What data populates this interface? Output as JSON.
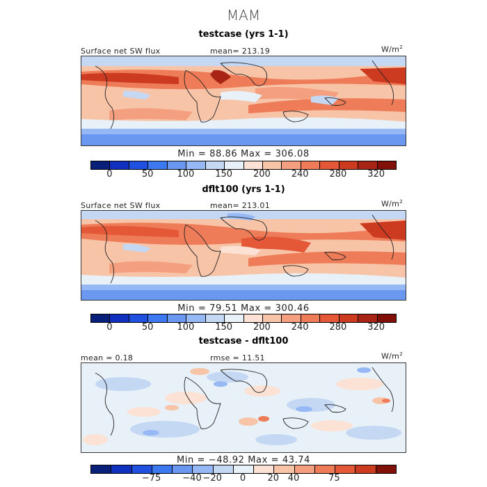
{
  "title": "MAM",
  "units": "W/m",
  "units_exp": "2",
  "panels": [
    {
      "title": "testcase (yrs 1-1)",
      "left_label": "Surface net SW flux",
      "center_label": "mean= 213.19",
      "min_max": "Min =  88.86  Max = 306.08",
      "ticks": [
        "0",
        "50",
        "100",
        "150",
        "200",
        "240",
        "280",
        "320"
      ]
    },
    {
      "title": "dflt100 (yrs 1-1)",
      "left_label": "Surface net SW flux",
      "center_label": "mean= 213.01",
      "min_max": "Min =  79.51  Max = 300.46",
      "ticks": [
        "0",
        "50",
        "100",
        "150",
        "200",
        "240",
        "280",
        "320"
      ]
    },
    {
      "title": "testcase - dflt100",
      "left_label": "mean =  0.18",
      "center_label": "rmse =  11.51",
      "min_max": "Min = −48.92  Max =  43.74",
      "ticks": [
        "−75",
        "−40",
        "−20",
        "0",
        "20",
        "40",
        "75"
      ]
    }
  ],
  "colors": {
    "scale": [
      "#08207a",
      "#1030c0",
      "#2050e0",
      "#3c78f0",
      "#6a98f0",
      "#96b8f4",
      "#c4d8f4",
      "#e8f0f8",
      "#fbe2d4",
      "#f8c4a8",
      "#f4a080",
      "#ee7c58",
      "#e45838",
      "#cc3a20",
      "#a82414",
      "#801008"
    ],
    "diff_scale": [
      "#08207a",
      "#1030c0",
      "#2050e0",
      "#3c78f0",
      "#6a98f0",
      "#96b8f4",
      "#c4d8f4",
      "#e8f0f8",
      "#fbe2d4",
      "#f8c4a8",
      "#f4a080",
      "#ee7c58",
      "#e45838",
      "#cc3a20",
      "#801008"
    ]
  },
  "chart_data": [
    {
      "type": "heatmap",
      "title": "testcase (yrs 1-1)",
      "variable": "Surface net SW flux",
      "units": "W/m2",
      "mean": 213.19,
      "min": 88.86,
      "max": 306.08,
      "colorbar_ticks": [
        0,
        50,
        100,
        150,
        200,
        240,
        280,
        320
      ]
    },
    {
      "type": "heatmap",
      "title": "dflt100 (yrs 1-1)",
      "variable": "Surface net SW flux",
      "units": "W/m2",
      "mean": 213.01,
      "min": 79.51,
      "max": 300.46,
      "colorbar_ticks": [
        0,
        50,
        100,
        150,
        200,
        240,
        280,
        320
      ]
    },
    {
      "type": "heatmap",
      "title": "testcase - dflt100",
      "units": "W/m2",
      "mean": 0.18,
      "rmse": 11.51,
      "min": -48.92,
      "max": 43.74,
      "colorbar_ticks": [
        -75,
        -40,
        -20,
        0,
        20,
        40,
        75
      ]
    }
  ]
}
